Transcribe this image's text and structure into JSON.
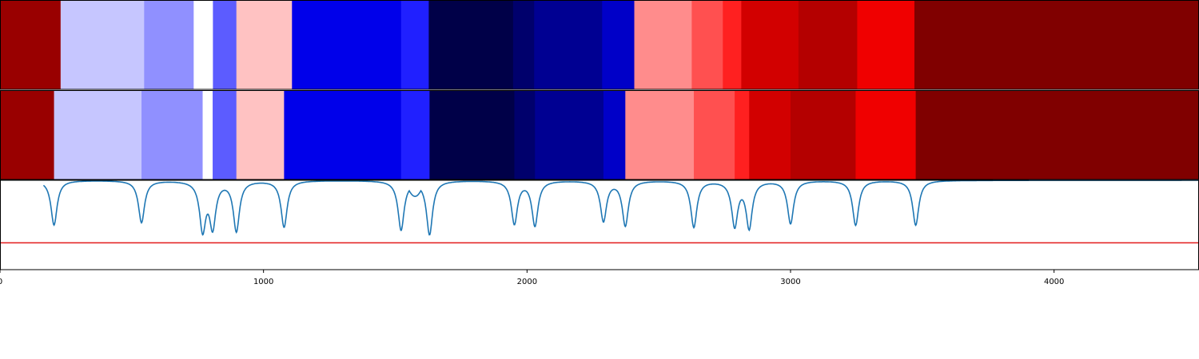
{
  "chart_data": {
    "type": "heatmap",
    "xlim": [
      0,
      4550
    ],
    "x_ticks": [
      0,
      1000,
      2000,
      3000,
      4000
    ],
    "x_tick_labels": [
      "0",
      "1000",
      "2000",
      "3000",
      "4000"
    ],
    "grid": false,
    "colormap": "seismic",
    "rows": [
      {
        "segments": [
          {
            "start": 0,
            "end": 230,
            "color": "#990000"
          },
          {
            "start": 230,
            "end": 547,
            "color": "#c6c6ff"
          },
          {
            "start": 547,
            "end": 735,
            "color": "#9090ff"
          },
          {
            "start": 735,
            "end": 808,
            "color": "#ffffff"
          },
          {
            "start": 808,
            "end": 897,
            "color": "#5c5cff"
          },
          {
            "start": 897,
            "end": 1108,
            "color": "#ffc2c2"
          },
          {
            "start": 1108,
            "end": 1522,
            "color": "#0000ea"
          },
          {
            "start": 1522,
            "end": 1627,
            "color": "#2020ff"
          },
          {
            "start": 1627,
            "end": 1947,
            "color": "#000048"
          },
          {
            "start": 1947,
            "end": 2027,
            "color": "#00006c"
          },
          {
            "start": 2027,
            "end": 2285,
            "color": "#000092"
          },
          {
            "start": 2285,
            "end": 2407,
            "color": "#0000c8"
          },
          {
            "start": 2407,
            "end": 2625,
            "color": "#ff8c8c"
          },
          {
            "start": 2625,
            "end": 2743,
            "color": "#ff5050"
          },
          {
            "start": 2743,
            "end": 2813,
            "color": "#ff2020"
          },
          {
            "start": 2813,
            "end": 3030,
            "color": "#d20000"
          },
          {
            "start": 3030,
            "end": 3253,
            "color": "#b40000"
          },
          {
            "start": 3253,
            "end": 3470,
            "color": "#f00000"
          },
          {
            "start": 3470,
            "end": 4550,
            "color": "#800000"
          }
        ]
      },
      {
        "segments": [
          {
            "start": 0,
            "end": 205,
            "color": "#990000"
          },
          {
            "start": 205,
            "end": 537,
            "color": "#c6c6ff"
          },
          {
            "start": 537,
            "end": 769,
            "color": "#9090ff"
          },
          {
            "start": 769,
            "end": 807,
            "color": "#ffffff"
          },
          {
            "start": 807,
            "end": 897,
            "color": "#5c5cff"
          },
          {
            "start": 897,
            "end": 1078,
            "color": "#ffc2c2"
          },
          {
            "start": 1078,
            "end": 1522,
            "color": "#0000ea"
          },
          {
            "start": 1522,
            "end": 1630,
            "color": "#2020ff"
          },
          {
            "start": 1630,
            "end": 1952,
            "color": "#000048"
          },
          {
            "start": 1952,
            "end": 2030,
            "color": "#00006c"
          },
          {
            "start": 2030,
            "end": 2290,
            "color": "#000092"
          },
          {
            "start": 2290,
            "end": 2373,
            "color": "#0000c8"
          },
          {
            "start": 2373,
            "end": 2633,
            "color": "#ff8c8c"
          },
          {
            "start": 2633,
            "end": 2788,
            "color": "#ff5050"
          },
          {
            "start": 2788,
            "end": 2843,
            "color": "#ff2020"
          },
          {
            "start": 2843,
            "end": 3000,
            "color": "#d20000"
          },
          {
            "start": 3000,
            "end": 3247,
            "color": "#b40000"
          },
          {
            "start": 3247,
            "end": 3475,
            "color": "#f00000"
          },
          {
            "start": 3475,
            "end": 4550,
            "color": "#800000"
          }
        ]
      }
    ],
    "line_series": {
      "color": "#1f77b4",
      "ylim": [
        0,
        1
      ],
      "baseline": 1.0,
      "dips": [
        {
          "x": 205,
          "depth": 0.5
        },
        {
          "x": 537,
          "depth": 0.47
        },
        {
          "x": 769,
          "depth": 0.54
        },
        {
          "x": 807,
          "depth": 0.5
        },
        {
          "x": 897,
          "depth": 0.56
        },
        {
          "x": 1078,
          "depth": 0.52
        },
        {
          "x": 1522,
          "depth": 0.55
        },
        {
          "x": 1630,
          "depth": 0.6
        },
        {
          "x": 1952,
          "depth": 0.48
        },
        {
          "x": 2030,
          "depth": 0.5
        },
        {
          "x": 2290,
          "depth": 0.45
        },
        {
          "x": 2373,
          "depth": 0.5
        },
        {
          "x": 2633,
          "depth": 0.52
        },
        {
          "x": 2788,
          "depth": 0.5
        },
        {
          "x": 2843,
          "depth": 0.52
        },
        {
          "x": 3000,
          "depth": 0.48
        },
        {
          "x": 3247,
          "depth": 0.5
        },
        {
          "x": 3475,
          "depth": 0.5
        }
      ],
      "bumps": [
        {
          "from": 1535,
          "to": 1615,
          "level": 0.82
        },
        {
          "from": 775,
          "to": 800,
          "level": 0.8
        },
        {
          "from": 2795,
          "to": 2835,
          "level": 0.86
        }
      ]
    },
    "threshold_line": {
      "y": 0.3,
      "color": "#e31a1c"
    }
  }
}
